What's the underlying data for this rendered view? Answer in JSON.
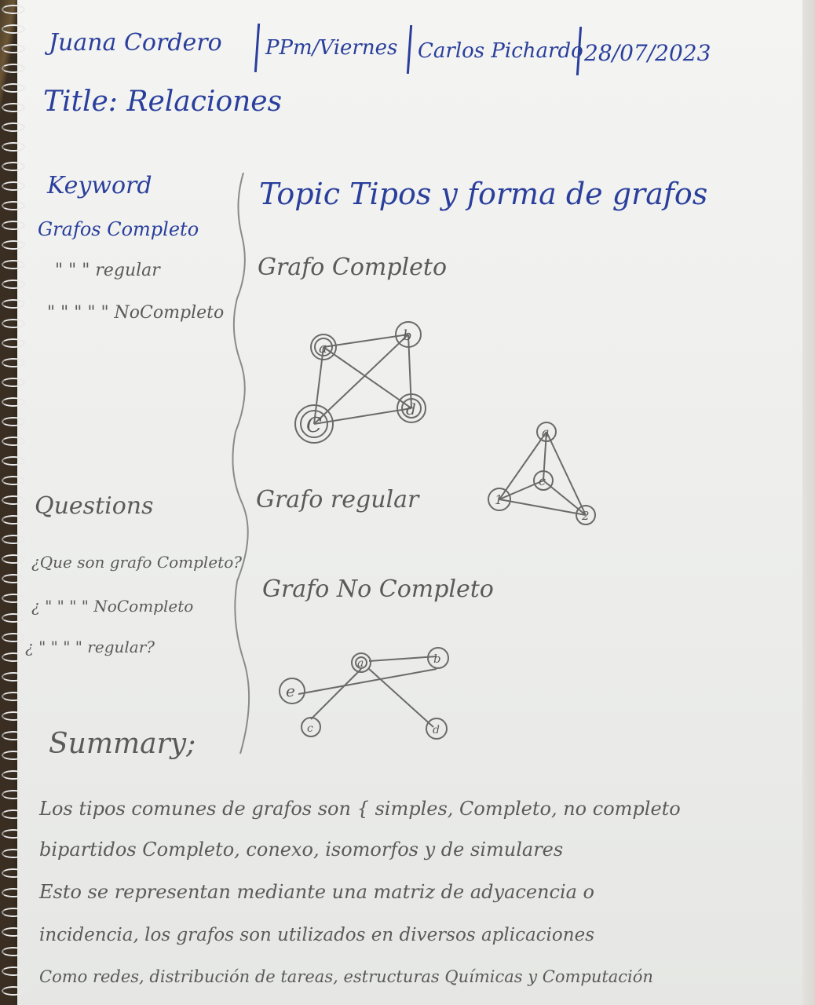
{
  "header": {
    "name": "Juana Cordero",
    "group": "PPm/Viernes",
    "teacher": "Carlos Pichardo",
    "date": "28/07/2023"
  },
  "title": "Title: Relaciones",
  "keyword": {
    "heading": "Keyword",
    "items": [
      "Grafos Completo",
      "\" \" \" regular",
      "\" \" \" \" \" NoCompleto"
    ]
  },
  "topic": "Topic Tipos y forma de grafos",
  "sections": {
    "complete": "Grafo Completo",
    "regular": "Grafo regular",
    "not_complete": "Grafo No Completo"
  },
  "graphs": {
    "complete_nodes": [
      "a",
      "b",
      "C",
      "d"
    ],
    "regular_nodes": [
      "a",
      "c",
      "1",
      "2"
    ],
    "not_complete_nodes": [
      "a",
      "b",
      "e",
      "c",
      "d"
    ]
  },
  "questions": {
    "heading": "Questions",
    "items": [
      "¿Que son grafo Completo?",
      "¿ \" \" \" \" NoCompleto",
      "¿ \" \" \" \" regular?"
    ]
  },
  "summary": {
    "heading": "Summary;",
    "lines": [
      "Los tipos comunes de grafos son { simples, Completo, no completo",
      "bipartidos Completo, conexo, isomorfos y de simulares",
      "Esto se representan mediante una matriz de adyacencia o",
      "incidencia, los grafos son utilizados en diversos aplicaciones",
      "Como redes, distribución de tareas, estructuras Químicas y Computación"
    ]
  }
}
